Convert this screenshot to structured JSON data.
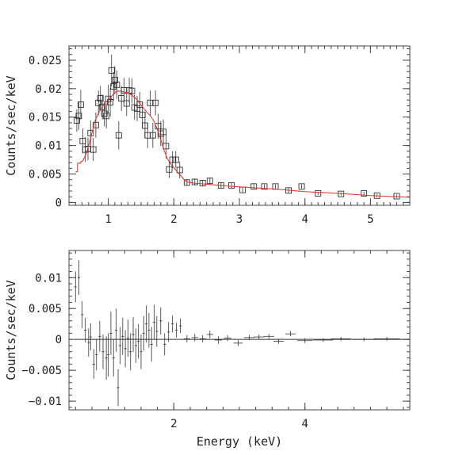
{
  "colors": {
    "data": "#333333",
    "model": "#e0302a",
    "frame": "#444444"
  },
  "chart_data": [
    {
      "type": "scatter",
      "panel": "spectrum",
      "xlabel": "",
      "ylabel": "Counts/sec/keV",
      "xlim": [
        0.4,
        5.6
      ],
      "ylim": [
        -0.0005,
        0.0275
      ],
      "x_ticks": [
        1,
        2,
        3,
        4,
        5
      ],
      "x_tick_labels": [
        "1",
        "2",
        "3",
        "4",
        "5"
      ],
      "y_ticks": [
        0,
        0.005,
        0.01,
        0.015,
        0.02,
        0.025
      ],
      "y_tick_labels": [
        "0",
        "0.005",
        "0.01",
        "0.015",
        "0.02",
        "0.025"
      ],
      "series": [
        {
          "kind": "data_with_errors",
          "marker": "square",
          "points": [
            [
              0.52,
              0.0144,
              0.002
            ],
            [
              0.55,
              0.0152,
              0.0025
            ],
            [
              0.58,
              0.0172,
              0.0026
            ],
            [
              0.61,
              0.0108,
              0.0022
            ],
            [
              0.65,
              0.0093,
              0.0022
            ],
            [
              0.69,
              0.0094,
              0.002
            ],
            [
              0.73,
              0.0122,
              0.0022
            ],
            [
              0.77,
              0.0093,
              0.002
            ],
            [
              0.81,
              0.0136,
              0.0022
            ],
            [
              0.85,
              0.0175,
              0.0022
            ],
            [
              0.88,
              0.0183,
              0.0022
            ],
            [
              0.91,
              0.0168,
              0.0022
            ],
            [
              0.94,
              0.0156,
              0.0022
            ],
            [
              0.97,
              0.0152,
              0.0022
            ],
            [
              1.0,
              0.0182,
              0.0025
            ],
            [
              1.03,
              0.0176,
              0.0025
            ],
            [
              1.05,
              0.0232,
              0.0028
            ],
            [
              1.08,
              0.0204,
              0.0025
            ],
            [
              1.1,
              0.0215,
              0.0025
            ],
            [
              1.13,
              0.0207,
              0.0025
            ],
            [
              1.16,
              0.0118,
              0.0025
            ],
            [
              1.2,
              0.0183,
              0.0022
            ],
            [
              1.24,
              0.0197,
              0.0022
            ],
            [
              1.28,
              0.0174,
              0.0022
            ],
            [
              1.32,
              0.0197,
              0.0022
            ],
            [
              1.36,
              0.0196,
              0.0022
            ],
            [
              1.4,
              0.0167,
              0.0022
            ],
            [
              1.44,
              0.0165,
              0.0022
            ],
            [
              1.48,
              0.0172,
              0.0022
            ],
            [
              1.52,
              0.0154,
              0.0022
            ],
            [
              1.56,
              0.0135,
              0.0022
            ],
            [
              1.6,
              0.0118,
              0.0022
            ],
            [
              1.64,
              0.0175,
              0.0022
            ],
            [
              1.68,
              0.0118,
              0.0022
            ],
            [
              1.72,
              0.0175,
              0.0022
            ],
            [
              1.76,
              0.0134,
              0.0022
            ],
            [
              1.8,
              0.0121,
              0.0022
            ],
            [
              1.84,
              0.0124,
              0.0022
            ],
            [
              1.88,
              0.0099,
              0.0022
            ],
            [
              1.93,
              0.0058,
              0.0015
            ],
            [
              1.98,
              0.0075,
              0.0015
            ],
            [
              2.03,
              0.0075,
              0.0015
            ],
            [
              2.09,
              0.0057,
              0.0015
            ],
            [
              2.2,
              0.0035,
              0.0006
            ],
            [
              2.32,
              0.0036,
              0.0006
            ],
            [
              2.44,
              0.0034,
              0.0006
            ],
            [
              2.55,
              0.0038,
              0.0006
            ],
            [
              2.72,
              0.003,
              0.0005
            ],
            [
              2.88,
              0.003,
              0.0005
            ],
            [
              3.05,
              0.0022,
              0.0004
            ],
            [
              3.22,
              0.0028,
              0.0004
            ],
            [
              3.38,
              0.0028,
              0.0004
            ],
            [
              3.55,
              0.0028,
              0.0004
            ],
            [
              3.75,
              0.0021,
              0.0004
            ],
            [
              3.95,
              0.0028,
              0.0004
            ],
            [
              4.2,
              0.0016,
              0.0003
            ],
            [
              4.55,
              0.0015,
              0.0003
            ],
            [
              4.9,
              0.0016,
              0.0003
            ],
            [
              5.1,
              0.0012,
              0.0003
            ],
            [
              5.4,
              0.0011,
              0.0003
            ]
          ]
        },
        {
          "kind": "model",
          "points": [
            [
              0.5,
              0.0054
            ],
            [
              0.53,
              0.0054
            ],
            [
              0.53,
              0.0069
            ],
            [
              0.58,
              0.0069
            ],
            [
              0.58,
              0.0072
            ],
            [
              0.6,
              0.0072
            ],
            [
              0.62,
              0.0075
            ],
            [
              0.66,
              0.0085
            ],
            [
              0.7,
              0.01
            ],
            [
              0.75,
              0.0122
            ],
            [
              0.8,
              0.0144
            ],
            [
              0.85,
              0.0157
            ],
            [
              0.9,
              0.0167
            ],
            [
              0.95,
              0.0174
            ],
            [
              1.0,
              0.0181
            ],
            [
              1.05,
              0.0187
            ],
            [
              1.1,
              0.0193
            ],
            [
              1.15,
              0.0196
            ],
            [
              1.2,
              0.0195
            ],
            [
              1.25,
              0.0194
            ],
            [
              1.3,
              0.0193
            ],
            [
              1.35,
              0.0189
            ],
            [
              1.4,
              0.0185
            ],
            [
              1.45,
              0.0179
            ],
            [
              1.5,
              0.0171
            ],
            [
              1.55,
              0.0164
            ],
            [
              1.6,
              0.0157
            ],
            [
              1.65,
              0.0151
            ],
            [
              1.7,
              0.0142
            ],
            [
              1.75,
              0.0128
            ],
            [
              1.8,
              0.0111
            ],
            [
              1.85,
              0.0092
            ],
            [
              1.9,
              0.0077
            ],
            [
              1.95,
              0.0068
            ],
            [
              2.0,
              0.0061
            ],
            [
              2.05,
              0.0054
            ],
            [
              2.1,
              0.0048
            ],
            [
              2.15,
              0.0041
            ],
            [
              2.2,
              0.0036
            ],
            [
              2.3,
              0.0034
            ],
            [
              2.5,
              0.0032
            ],
            [
              2.8,
              0.0029
            ],
            [
              3.2,
              0.0026
            ],
            [
              3.6,
              0.0023
            ],
            [
              4.0,
              0.0019
            ],
            [
              4.5,
              0.0016
            ],
            [
              5.0,
              0.0012
            ],
            [
              5.6,
              0.0009
            ]
          ]
        }
      ]
    },
    {
      "type": "scatter",
      "panel": "residuals",
      "xlabel": "Energy (keV)",
      "ylabel": "Counts/sec/keV",
      "xlim": [
        0.4,
        5.6
      ],
      "ylim": [
        -0.0114,
        0.0144
      ],
      "x_ticks": [
        2,
        4
      ],
      "x_tick_labels": [
        "2",
        "4"
      ],
      "y_ticks": [
        -0.01,
        -0.005,
        0,
        0.005,
        0.01
      ],
      "y_tick_labels": [
        "−0.01",
        "−0.005",
        "0",
        "0.005",
        "0.01"
      ],
      "baseline": 0,
      "series": [
        {
          "kind": "residual_with_errors",
          "points": [
            [
              0.5,
              0.0085,
              0.0025,
              0.02
            ],
            [
              0.55,
              0.01,
              0.0028,
              0.02
            ],
            [
              0.6,
              0.004,
              0.0022,
              0.02
            ],
            [
              0.65,
              0.0015,
              0.002,
              0.02
            ],
            [
              0.7,
              -0.0005,
              0.0023,
              0.02
            ],
            [
              0.73,
              0.0004,
              0.0022,
              0.02
            ],
            [
              0.78,
              -0.004,
              0.0024,
              0.02
            ],
            [
              0.82,
              -0.0025,
              0.0025,
              0.02
            ],
            [
              0.87,
              0.0005,
              0.0025,
              0.02
            ],
            [
              0.92,
              -0.002,
              0.0028,
              0.02
            ],
            [
              0.97,
              -0.003,
              0.0035,
              0.02
            ],
            [
              1.0,
              -0.0025,
              0.0035,
              0.02
            ],
            [
              1.04,
              0.001,
              0.0035,
              0.02
            ],
            [
              1.08,
              -0.003,
              0.003,
              0.02
            ],
            [
              1.12,
              0.0015,
              0.0035,
              0.02
            ],
            [
              1.15,
              -0.0078,
              0.003,
              0.02
            ],
            [
              1.18,
              -0.001,
              0.003,
              0.02
            ],
            [
              1.22,
              0.0005,
              0.003,
              0.02
            ],
            [
              1.26,
              -0.0015,
              0.003,
              0.02
            ],
            [
              1.3,
              0.0002,
              0.003,
              0.02
            ],
            [
              1.34,
              -0.002,
              0.003,
              0.02
            ],
            [
              1.38,
              0.0008,
              0.0028,
              0.02
            ],
            [
              1.42,
              -0.001,
              0.0028,
              0.02
            ],
            [
              1.46,
              -0.0003,
              0.0028,
              0.02
            ],
            [
              1.5,
              -0.002,
              0.0028,
              0.02
            ],
            [
              1.54,
              0.001,
              0.0028,
              0.02
            ],
            [
              1.58,
              0.0025,
              0.003,
              0.02
            ],
            [
              1.62,
              0.0015,
              0.0028,
              0.02
            ],
            [
              1.66,
              -0.0008,
              0.0028,
              0.02
            ],
            [
              1.7,
              0.0028,
              0.0028,
              0.02
            ],
            [
              1.74,
              0.0013,
              0.0025,
              0.02
            ],
            [
              1.8,
              0.003,
              0.0022,
              0.02
            ],
            [
              1.86,
              -0.0008,
              0.0018,
              0.02
            ],
            [
              1.92,
              0.0012,
              0.0016,
              0.02
            ],
            [
              1.98,
              0.0025,
              0.0014,
              0.02
            ],
            [
              2.04,
              0.0015,
              0.0012,
              0.02
            ],
            [
              2.1,
              0.0022,
              0.0012,
              0.02
            ],
            [
              2.2,
              0.0001,
              0.0006,
              0.05
            ],
            [
              2.32,
              0.0003,
              0.0006,
              0.05
            ],
            [
              2.44,
              0.0001,
              0.0006,
              0.05
            ],
            [
              2.55,
              0.0008,
              0.0006,
              0.05
            ],
            [
              2.68,
              -0.0001,
              0.0006,
              0.06
            ],
            [
              2.82,
              0.0002,
              0.0005,
              0.06
            ],
            [
              2.98,
              -0.0006,
              0.0005,
              0.07
            ],
            [
              3.15,
              0.0003,
              0.0004,
              0.08
            ],
            [
              3.3,
              0.0004,
              0.0004,
              0.08
            ],
            [
              3.45,
              0.0005,
              0.0004,
              0.08
            ],
            [
              3.6,
              -0.0003,
              0.0004,
              0.08
            ],
            [
              3.78,
              0.0009,
              0.0004,
              0.08
            ],
            [
              4.0,
              -0.0002,
              0.0004,
              0.12
            ],
            [
              4.28,
              -0.0001,
              0.0003,
              0.15
            ],
            [
              4.55,
              0.0001,
              0.0003,
              0.15
            ],
            [
              4.9,
              0.0,
              0.0003,
              0.18
            ],
            [
              5.25,
              0.0001,
              0.0003,
              0.2
            ]
          ]
        }
      ]
    }
  ]
}
